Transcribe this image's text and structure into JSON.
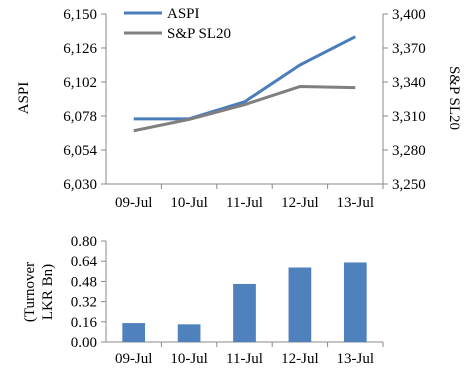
{
  "chart_data": [
    {
      "type": "line",
      "categories": [
        "09-Jul",
        "10-Jul",
        "11-Jul",
        "12-Jul",
        "13-Jul"
      ],
      "series": [
        {
          "name": "ASPI",
          "axis": "left",
          "color": "#4a7ebb",
          "values": [
            6076,
            6076,
            6088,
            6114,
            6134
          ]
        },
        {
          "name": "S&P SL20",
          "axis": "right",
          "color": "#7f7f7f",
          "values": [
            3297,
            3307,
            3320,
            3336,
            3335
          ]
        }
      ],
      "ylabel": "ASPI",
      "ylabel_right": "S&P SL20",
      "ylim": [
        6030,
        6150
      ],
      "ylim_right": [
        3250,
        3400
      ],
      "yticks": [
        "6,030",
        "6,054",
        "6,078",
        "6,102",
        "6,126",
        "6,150"
      ],
      "yticks_right": [
        "3,250",
        "3,280",
        "3,310",
        "3,340",
        "3,370",
        "3,400"
      ],
      "legend": "top-left"
    },
    {
      "type": "bar",
      "categories": [
        "09-Jul",
        "10-Jul",
        "11-Jul",
        "12-Jul",
        "13-Jul"
      ],
      "values": [
        0.15,
        0.14,
        0.46,
        0.59,
        0.63
      ],
      "color": "#4f81bd",
      "ylabel_lines": [
        "(Turnover",
        "LKR Bn)"
      ],
      "ylim": [
        0,
        0.8
      ],
      "yticks": [
        "0.00",
        "0.16",
        "0.32",
        "0.48",
        "0.64",
        "0.80"
      ]
    }
  ]
}
